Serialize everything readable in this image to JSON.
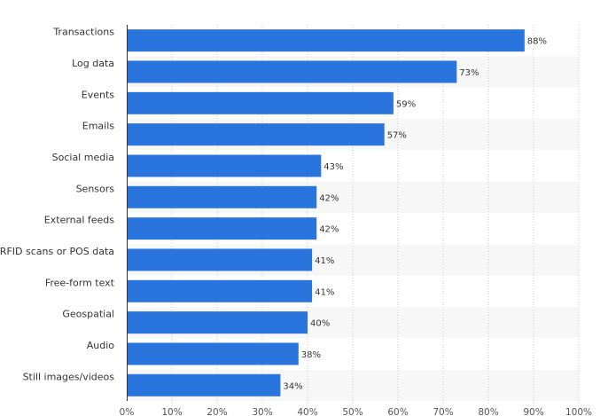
{
  "chart_data": {
    "type": "bar",
    "orientation": "horizontal",
    "title": "",
    "xlabel": "",
    "ylabel": "",
    "categories": [
      "Transactions",
      "Log data",
      "Events",
      "Emails",
      "Social media",
      "Sensors",
      "External feeds",
      "RFID scans or POS data",
      "Free-form text",
      "Geospatial",
      "Audio",
      "Still images/videos"
    ],
    "values": [
      88,
      73,
      59,
      57,
      43,
      42,
      42,
      41,
      41,
      40,
      38,
      34
    ],
    "value_labels": [
      "88%",
      "73%",
      "59%",
      "57%",
      "43%",
      "42%",
      "42%",
      "41%",
      "41%",
      "40%",
      "38%",
      "34%"
    ],
    "xlim": [
      0,
      100
    ],
    "x_ticks": [
      0,
      10,
      20,
      30,
      40,
      50,
      60,
      70,
      80,
      90,
      100
    ],
    "x_tick_labels": [
      "0%",
      "10%",
      "20%",
      "30%",
      "40%",
      "50%",
      "60%",
      "70%",
      "80%",
      "90%",
      "100%"
    ],
    "grid": true,
    "legend": "none",
    "colors": {
      "bar": "#2a74de",
      "band": "#f7f7f7",
      "grid": "#cccccc",
      "axis": "#333333"
    }
  }
}
